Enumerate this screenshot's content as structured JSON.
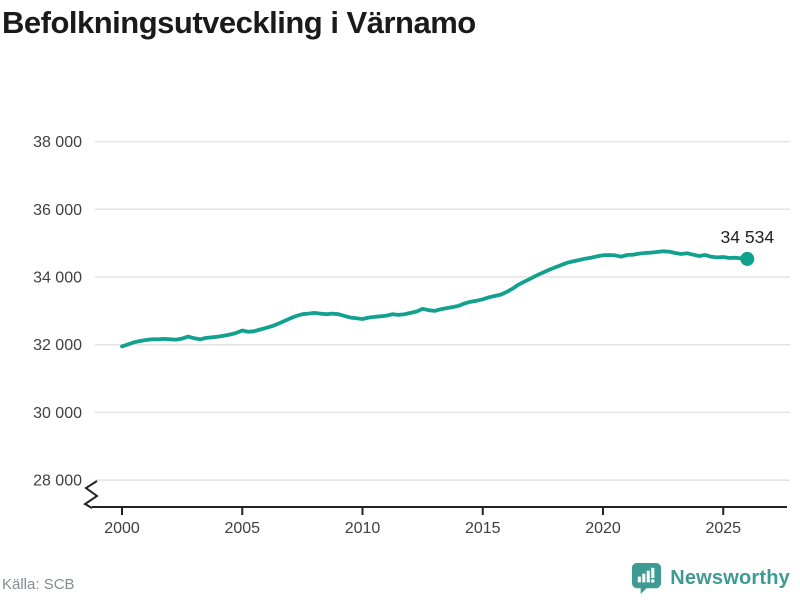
{
  "title": "Befolkningsutveckling i Värnamo",
  "source": "Källa: SCB",
  "branding": {
    "name": "Newsworthy",
    "logo_icon": "bar-chart-speech-pin-icon",
    "color": "#3d9b94"
  },
  "colors": {
    "line": "#12a08f",
    "dot": "#12a08f",
    "grid": "#e3e3e3",
    "axis": "#222222",
    "title": "#1a1a1a",
    "tick_label": "#404040",
    "end_label": "#222222",
    "source": "#878b92"
  },
  "chart_data": {
    "type": "line",
    "title": "Befolkningsutveckling i Värnamo",
    "xlabel": "",
    "ylabel": "",
    "grid": "horizontal",
    "legend": "none",
    "axis_break": true,
    "x_ticks": [
      2000,
      2005,
      2010,
      2015,
      2020,
      2025
    ],
    "x_tick_labels": [
      "2000",
      "2005",
      "2010",
      "2015",
      "2020",
      "2025"
    ],
    "y_ticks": [
      28000,
      30000,
      32000,
      34000,
      36000,
      38000
    ],
    "y_tick_labels": [
      "28 000",
      "30 000",
      "32 000",
      "34 000",
      "36 000",
      "38 000"
    ],
    "ylim": [
      28000,
      38000
    ],
    "xlim": [
      2000,
      2026.8
    ],
    "end_label": "34 534",
    "end_value": 34534,
    "series": [
      {
        "name": "Befolkning",
        "x": [
          2000.0,
          2000.25,
          2000.5,
          2000.75,
          2001.0,
          2001.25,
          2001.5,
          2001.75,
          2002.0,
          2002.25,
          2002.5,
          2002.75,
          2003.0,
          2003.25,
          2003.5,
          2003.75,
          2004.0,
          2004.25,
          2004.5,
          2004.75,
          2005.0,
          2005.25,
          2005.5,
          2005.75,
          2006.0,
          2006.25,
          2006.5,
          2006.75,
          2007.0,
          2007.25,
          2007.5,
          2007.75,
          2008.0,
          2008.25,
          2008.5,
          2008.75,
          2009.0,
          2009.25,
          2009.5,
          2009.75,
          2010.0,
          2010.25,
          2010.5,
          2010.75,
          2011.0,
          2011.25,
          2011.5,
          2011.75,
          2012.0,
          2012.25,
          2012.5,
          2012.75,
          2013.0,
          2013.25,
          2013.5,
          2013.75,
          2014.0,
          2014.25,
          2014.5,
          2014.75,
          2015.0,
          2015.25,
          2015.5,
          2015.75,
          2016.0,
          2016.25,
          2016.5,
          2016.75,
          2017.0,
          2017.25,
          2017.5,
          2017.75,
          2018.0,
          2018.25,
          2018.5,
          2018.75,
          2019.0,
          2019.25,
          2019.5,
          2019.75,
          2020.0,
          2020.25,
          2020.5,
          2020.75,
          2021.0,
          2021.25,
          2021.5,
          2021.75,
          2022.0,
          2022.25,
          2022.5,
          2022.75,
          2023.0,
          2023.25,
          2023.5,
          2023.75,
          2024.0,
          2024.25,
          2024.5,
          2024.75,
          2025.0,
          2025.25,
          2025.5,
          2025.75,
          2026.0
        ],
        "y": [
          31950,
          32010,
          32070,
          32110,
          32140,
          32160,
          32160,
          32170,
          32160,
          32150,
          32180,
          32240,
          32190,
          32160,
          32200,
          32220,
          32240,
          32270,
          32300,
          32350,
          32420,
          32380,
          32400,
          32450,
          32500,
          32550,
          32620,
          32700,
          32780,
          32850,
          32900,
          32920,
          32940,
          32920,
          32900,
          32920,
          32900,
          32850,
          32800,
          32780,
          32760,
          32800,
          32820,
          32840,
          32860,
          32900,
          32880,
          32900,
          32940,
          32980,
          33060,
          33020,
          33000,
          33050,
          33080,
          33110,
          33150,
          33220,
          33270,
          33300,
          33340,
          33400,
          33440,
          33480,
          33560,
          33660,
          33780,
          33870,
          33960,
          34050,
          34130,
          34210,
          34280,
          34350,
          34420,
          34460,
          34500,
          34540,
          34570,
          34610,
          34640,
          34650,
          34640,
          34600,
          34650,
          34660,
          34690,
          34710,
          34720,
          34740,
          34760,
          34750,
          34710,
          34680,
          34700,
          34660,
          34620,
          34650,
          34600,
          34580,
          34590,
          34560,
          34570,
          34550,
          34534
        ]
      }
    ]
  }
}
